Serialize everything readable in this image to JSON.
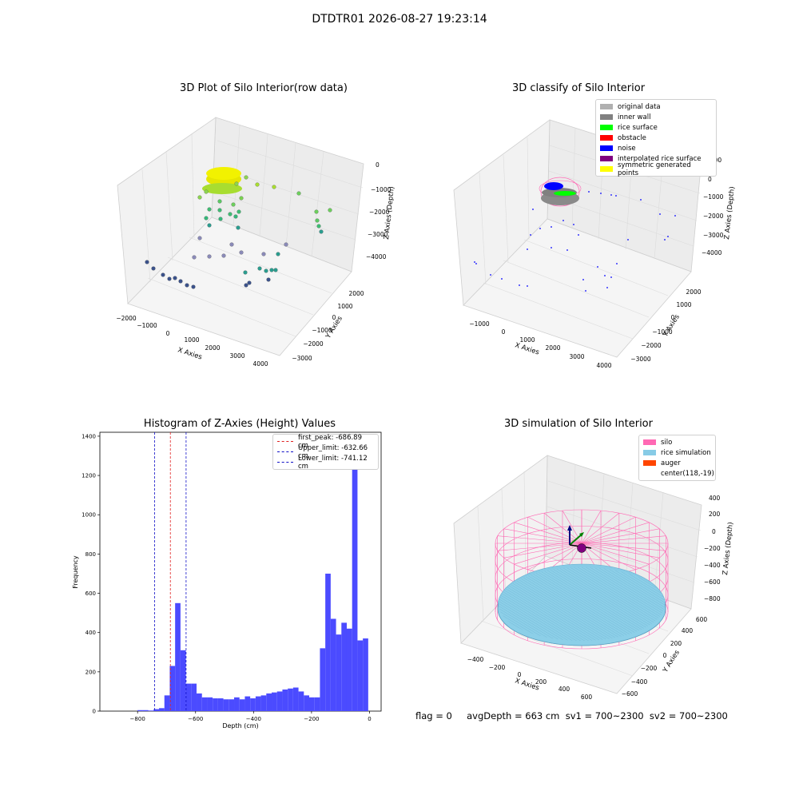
{
  "suptitle": "DTDTR01 2026-08-27 19:23:14",
  "footer": "flag = 0     avgDepth = 663 cm  sv1 = 700~2300  sv2 = 700~2300",
  "colors": {
    "hist_bar": "#4b4bff",
    "first_peak": "#e02020",
    "limits": "#1010c8",
    "silo": "#ff69b4",
    "rice_simulation": "#87cbe6",
    "auger": "#ff4500",
    "original_data": "#b0b0b0",
    "inner_wall": "#808080",
    "rice_surface": "#00ff00",
    "obstacle": "#ff0000",
    "noise": "#0000ff",
    "interpolated_rice_surface": "#800080",
    "symmetric_generated_points": "#ffff00"
  },
  "chart_data": [
    {
      "type": "scatter",
      "subtype": "3d",
      "title": "3D Plot of Silo Interior(row data)",
      "xlabel": "X Axies",
      "ylabel": "Y Axies",
      "zlabel": "Z Axies (Depth)",
      "xticks": [
        "−2000",
        "−1000",
        "0",
        "1000",
        "2000",
        "3000",
        "4000"
      ],
      "yticks": [
        "−3000",
        "−2000",
        "−1000",
        "0",
        "1000",
        "2000"
      ],
      "zticks": [
        "−4000",
        "−3000",
        "−2000",
        "−1000",
        "0"
      ],
      "xlim": [
        -2000,
        4000
      ],
      "ylim": [
        -3000,
        2000
      ],
      "zlim": [
        -4000,
        0
      ],
      "colormap": "viridis",
      "grid": true
    },
    {
      "type": "scatter",
      "subtype": "3d",
      "title": "3D classify of Silo Interior",
      "xlabel": "X Axies",
      "ylabel": "Y Axies",
      "zlabel": "Z Axies (Depth)",
      "xticks": [
        "−1000",
        "0",
        "1000",
        "2000",
        "3000",
        "4000"
      ],
      "yticks": [
        "−3000",
        "−2000",
        "−1000",
        "0",
        "1000",
        "2000"
      ],
      "zticks": [
        "−4000",
        "−3000",
        "−2000",
        "−1000",
        "0",
        "1000"
      ],
      "legend": [
        "original data",
        "inner wall",
        "rice surface",
        "obstacle",
        "noise",
        "interpolated rice surface",
        "symmetric generated points"
      ],
      "legend_position": "top-right",
      "grid": true
    },
    {
      "type": "bar",
      "subtype": "histogram",
      "title": "Histogram of Z-Axies (Height) Values",
      "xlabel": "Depth (cm)",
      "ylabel": "Frequency",
      "xlim": [
        -930,
        40
      ],
      "ylim": [
        0,
        1420
      ],
      "xticks": [
        -800,
        -600,
        -400,
        -200,
        0
      ],
      "xtick_labels": [
        "−800",
        "−600",
        "−400",
        "−200",
        "0"
      ],
      "yticks": [
        0,
        200,
        400,
        600,
        800,
        1000,
        1200,
        1400
      ],
      "bin_width": 18.5,
      "bin_start": -800,
      "counts": [
        5,
        5,
        3,
        10,
        15,
        80,
        230,
        550,
        310,
        140,
        140,
        90,
        70,
        70,
        65,
        65,
        60,
        60,
        70,
        60,
        75,
        65,
        75,
        80,
        90,
        95,
        100,
        110,
        115,
        120,
        100,
        80,
        70,
        70,
        320,
        700,
        470,
        390,
        450,
        420,
        1340,
        360,
        370
      ],
      "vlines": [
        {
          "label": "first_peak: -686.89 cm",
          "x": -686.89,
          "color": "#e02020"
        },
        {
          "label": "Upper_limit: -632.66 cm",
          "x": -632.66,
          "color": "#1010c8"
        },
        {
          "label": "Lower_limit: -741.12 cm",
          "x": -741.12,
          "color": "#1010c8"
        }
      ],
      "legend_position": "top-right",
      "grid": false
    },
    {
      "type": "scatter",
      "subtype": "3d-surface",
      "title": "3D simulation of Silo Interior",
      "xlabel": "X Axies",
      "ylabel": "Y Axies",
      "zlabel": "Z Axies (Depth)",
      "xticks": [
        "−400",
        "−200",
        "0",
        "200",
        "400",
        "600"
      ],
      "yticks": [
        "−600",
        "−400",
        "−200",
        "0",
        "200",
        "400",
        "600"
      ],
      "zticks": [
        "−800",
        "−600",
        "−400",
        "−200",
        "0",
        "200",
        "400"
      ],
      "legend": [
        "silo",
        "rice simulation",
        "auger",
        "center(118,-19)"
      ],
      "legend_position": "top-right",
      "grid": true
    }
  ]
}
